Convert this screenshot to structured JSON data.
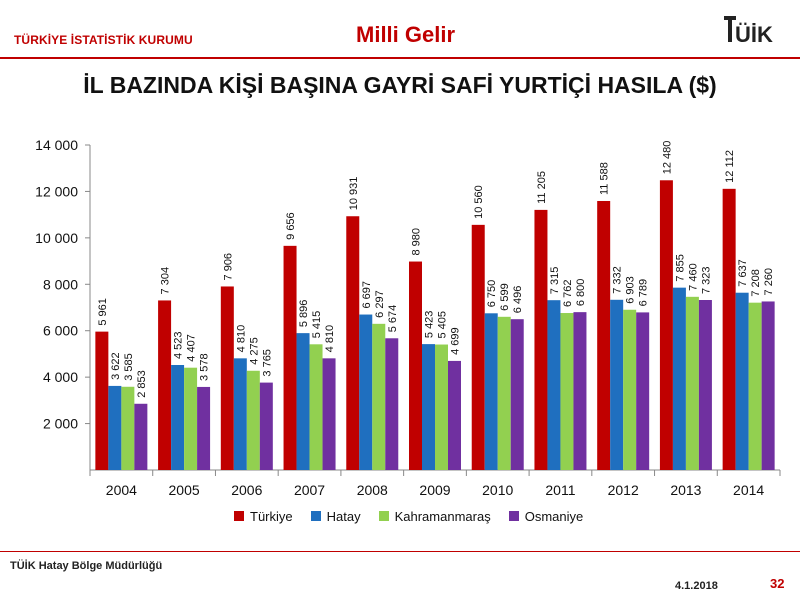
{
  "header": {
    "org_name": "TÜRKİYE İSTATİSTİK KURUMU",
    "slide_label": "Milli Gelir",
    "logo_text": "TÜİK"
  },
  "title": "İL BAZINDA KİŞİ BAŞINA GAYRİ SAFİ YURTİÇİ HASILA ($)",
  "colors": {
    "accent": "#c00000",
    "Türkiye": "#c00000",
    "Hatay": "#1f6fbf",
    "Kahramanmaraş": "#92d050",
    "Osmaniye": "#7030a0"
  },
  "chart_data": {
    "type": "bar",
    "categories": [
      "2004",
      "2005",
      "2006",
      "2007",
      "2008",
      "2009",
      "2010",
      "2011",
      "2012",
      "2013",
      "2014"
    ],
    "series": [
      {
        "name": "Türkiye",
        "values": [
          5961,
          7304,
          7906,
          9656,
          10931,
          8980,
          10560,
          11205,
          11588,
          12480,
          12112
        ]
      },
      {
        "name": "Hatay",
        "values": [
          3622,
          4523,
          4810,
          5896,
          6697,
          5423,
          6750,
          7315,
          7332,
          7855,
          7637
        ]
      },
      {
        "name": "Kahramanmaraş",
        "values": [
          3585,
          4407,
          4275,
          5415,
          6297,
          5405,
          6599,
          6762,
          6903,
          7460,
          7208
        ]
      },
      {
        "name": "Osmaniye",
        "values": [
          2853,
          3578,
          3765,
          4810,
          5674,
          4699,
          6496,
          6800,
          6789,
          7323,
          7260
        ]
      }
    ],
    "ylim": [
      0,
      14000
    ],
    "yticks": [
      2000,
      4000,
      6000,
      8000,
      10000,
      12000,
      14000
    ],
    "ytick_labels": [
      "2 000",
      "4 000",
      "6 000",
      "8 000",
      "10 000",
      "12 000",
      "14 000"
    ],
    "value_labels": [
      [
        "5 961",
        "7 304",
        "7 906",
        "9 656",
        "10 931",
        "8 980",
        "10 560",
        "11 205",
        "11 588",
        "12 480",
        "12 112"
      ],
      [
        "3 622",
        "4 523",
        "4 810",
        "5 896",
        "6 697",
        "5 423",
        "6 750",
        "7 315",
        "7 332",
        "7 855",
        "7 637"
      ],
      [
        "3 585",
        "4 407",
        "4 275",
        "5 415",
        "6 297",
        "5 405",
        "6 599",
        "6 762",
        "6 903",
        "7 460",
        "7 208"
      ],
      [
        "2 853",
        "3 578",
        "3 765",
        "4 810",
        "5 674",
        "4 699",
        "6 496",
        "6 800",
        "6 789",
        "7 323",
        "7 260"
      ]
    ],
    "grid": false,
    "legend_position": "bottom"
  },
  "footer": {
    "office": "TÜİK Hatay Bölge Müdürlüğü",
    "date": "4.1.2018",
    "page": "32"
  }
}
